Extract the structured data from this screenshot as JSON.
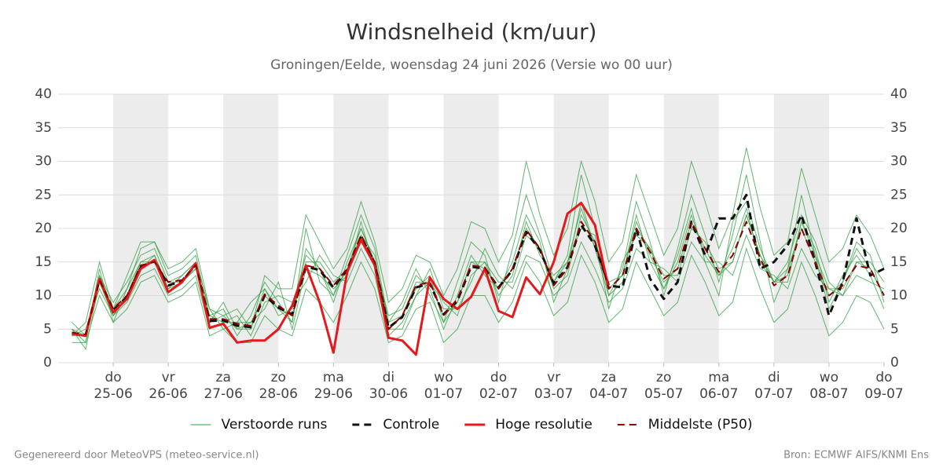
{
  "chart_data": {
    "type": "line",
    "title": "Windsnelheid (km/uur)",
    "subtitle": "Groningen/Eelde, woensdag 24 juni 2026 (Versie wo 00 uur)",
    "x": [
      0.25,
      0.5,
      0.75,
      1,
      1.25,
      1.5,
      1.75,
      2,
      2.25,
      2.5,
      2.75,
      3,
      3.25,
      3.5,
      3.75,
      4,
      4.25,
      4.5,
      4.75,
      5,
      5.25,
      5.5,
      5.75,
      6,
      6.25,
      6.5,
      6.75,
      7,
      7.25,
      7.5,
      7.75,
      8,
      8.25,
      8.5,
      8.75,
      9,
      9.25,
      9.5,
      9.75,
      10,
      10.25,
      10.5,
      10.75,
      11,
      11.25,
      11.5,
      11.75,
      12,
      12.25,
      12.5,
      12.75,
      13,
      13.25,
      13.5,
      13.75,
      14,
      14.25,
      14.5,
      14.75,
      15
    ],
    "xlim": [
      0,
      15
    ],
    "xticks": [
      {
        "value": 1,
        "label": "do\n25-06"
      },
      {
        "value": 2,
        "label": "vr\n26-06"
      },
      {
        "value": 3,
        "label": "za\n27-06"
      },
      {
        "value": 4,
        "label": "zo\n28-06"
      },
      {
        "value": 5,
        "label": "ma\n29-06"
      },
      {
        "value": 6,
        "label": "di\n30-06"
      },
      {
        "value": 7,
        "label": "wo\n01-07"
      },
      {
        "value": 8,
        "label": "do\n02-07"
      },
      {
        "value": 9,
        "label": "vr\n03-07"
      },
      {
        "value": 10,
        "label": "za\n04-07"
      },
      {
        "value": 11,
        "label": "zo\n05-07"
      },
      {
        "value": 12,
        "label": "ma\n06-07"
      },
      {
        "value": 13,
        "label": "di\n07-07"
      },
      {
        "value": 14,
        "label": "wo\n08-07"
      },
      {
        "value": 15,
        "label": "do\n09-07"
      }
    ],
    "ylim": [
      0,
      40
    ],
    "yticks": [
      0,
      5,
      10,
      15,
      20,
      25,
      30,
      35,
      40
    ],
    "grid": true,
    "ensemble": {
      "name": "Verstoorde runs",
      "color": "#2e9e3e",
      "members": [
        [
          5,
          3,
          14,
          6,
          11,
          17,
          18,
          13,
          14,
          16,
          7,
          8,
          4,
          7,
          12,
          9,
          6,
          20,
          12,
          10,
          16,
          22,
          17,
          6,
          9,
          14,
          10,
          6,
          12,
          18,
          16,
          9,
          17,
          25,
          19,
          12,
          16,
          28,
          20,
          10,
          14,
          24,
          18,
          10,
          17,
          25,
          19,
          12,
          19,
          28,
          18,
          9,
          14,
          25,
          16,
          8,
          12,
          18,
          16,
          9
        ],
        [
          4,
          5,
          11,
          7,
          9,
          13,
          14,
          10,
          11,
          13,
          5,
          6,
          7,
          4,
          9,
          10,
          9,
          12,
          16,
          13,
          12,
          17,
          13,
          4,
          6,
          10,
          14,
          8,
          8,
          12,
          17,
          13,
          11,
          16,
          15,
          10,
          12,
          18,
          14,
          9,
          11,
          17,
          15,
          14,
          12,
          18,
          15,
          15,
          13,
          19,
          14,
          13,
          11,
          17,
          13,
          11,
          10,
          13,
          12,
          11
        ],
        [
          6,
          4,
          13,
          9,
          12,
          16,
          17,
          12,
          13,
          15,
          8,
          5,
          6,
          9,
          11,
          7,
          8,
          16,
          14,
          9,
          15,
          20,
          15,
          7,
          8,
          13,
          11,
          5,
          10,
          16,
          13,
          11,
          15,
          22,
          18,
          9,
          14,
          24,
          17,
          12,
          13,
          22,
          15,
          11,
          16,
          23,
          15,
          10,
          21,
          24,
          17,
          12,
          15,
          22,
          18,
          12,
          10,
          15,
          15,
          12
        ],
        [
          5,
          2,
          12,
          7,
          10,
          15,
          16,
          11,
          12,
          14,
          6,
          9,
          5,
          6,
          8,
          12,
          5,
          14,
          13,
          11,
          13,
          21,
          14,
          5,
          5,
          10,
          12,
          9,
          7,
          13,
          15,
          10,
          13,
          21,
          16,
          13,
          15,
          20,
          19,
          8,
          15,
          19,
          17,
          13,
          13,
          20,
          18,
          14,
          15,
          22,
          16,
          12,
          12,
          21,
          17,
          9,
          13,
          16,
          13,
          8
        ],
        [
          4,
          6,
          15,
          8,
          13,
          18,
          18,
          14,
          15,
          17,
          8,
          7,
          8,
          5,
          13,
          11,
          11,
          22,
          18,
          14,
          17,
          24,
          18,
          9,
          11,
          16,
          15,
          10,
          14,
          21,
          20,
          15,
          19,
          30,
          22,
          16,
          20,
          30,
          24,
          15,
          18,
          28,
          22,
          16,
          20,
          30,
          24,
          17,
          22,
          32,
          23,
          16,
          18,
          29,
          22,
          15,
          17,
          22,
          19,
          14
        ],
        [
          3,
          3,
          10,
          6,
          8,
          12,
          13,
          9,
          10,
          12,
          4,
          5,
          3,
          3,
          7,
          5,
          4,
          11,
          9,
          6,
          10,
          15,
          11,
          3,
          4,
          8,
          9,
          3,
          5,
          10,
          10,
          6,
          9,
          15,
          12,
          7,
          9,
          16,
          12,
          6,
          8,
          15,
          11,
          7,
          9,
          16,
          12,
          7,
          9,
          17,
          11,
          6,
          8,
          15,
          10,
          4,
          6,
          10,
          9,
          5
        ],
        [
          5,
          4,
          13,
          8,
          11,
          15,
          15,
          12,
          12,
          14,
          7,
          6,
          6,
          6,
          10,
          8,
          7,
          15,
          15,
          12,
          14,
          20,
          15,
          6,
          7,
          12,
          12,
          7,
          9,
          15,
          14,
          11,
          14,
          20,
          17,
          11,
          13,
          22,
          18,
          11,
          13,
          21,
          16,
          12,
          14,
          21,
          17,
          13,
          15,
          22,
          16,
          12,
          13,
          21,
          16,
          11,
          11,
          15,
          14,
          10
        ],
        [
          4,
          4,
          12,
          7,
          10,
          14,
          16,
          11,
          13,
          15,
          6,
          7,
          5,
          5,
          11,
          8,
          6,
          17,
          14,
          10,
          14,
          19,
          16,
          5,
          7,
          11,
          13,
          6,
          9,
          15,
          15,
          12,
          12,
          19,
          17,
          12,
          15,
          23,
          17,
          10,
          12,
          20,
          17,
          11,
          15,
          22,
          16,
          13,
          17,
          23,
          15,
          12,
          14,
          20,
          15,
          10,
          12,
          17,
          14,
          10
        ]
      ]
    },
    "series": [
      {
        "name": "Controle",
        "color": "#111111",
        "style": "dashed",
        "width": 3,
        "values": [
          4.4,
          4.1,
          12.4,
          7.8,
          9.8,
          14.2,
          15.2,
          11.5,
          12.2,
          14.6,
          6.2,
          6.3,
          5.5,
          5.3,
          10,
          8.2,
          7.2,
          14.3,
          13.8,
          11.2,
          13.8,
          18.8,
          14.8,
          5.2,
          6.8,
          11.2,
          11.8,
          7.2,
          9.2,
          14.3,
          14,
          11.2,
          13.8,
          19.5,
          16.8,
          11.8,
          14.2,
          20.5,
          17.5,
          11.5,
          11.2,
          20,
          12.5,
          9.5,
          12,
          21,
          16,
          21.5,
          21.5,
          25,
          14,
          15,
          17.5,
          22,
          15,
          7,
          12,
          21.5,
          13,
          14
        ]
      },
      {
        "name": "Hoge resolutie",
        "color": "#e3191c",
        "style": "solid",
        "width": 3,
        "values": [
          4.3,
          4,
          12.5,
          7.5,
          9.5,
          14,
          15.3,
          10.5,
          12,
          14.8,
          5.2,
          5.8,
          3,
          3.3,
          3.3,
          5,
          8.5,
          14.5,
          9,
          1.5,
          13.5,
          18.3,
          14.5,
          3.7,
          3.3,
          1.2,
          12.7,
          9.5,
          8,
          9.8,
          14,
          7.7,
          6.8,
          12.7,
          10.2,
          15,
          22.2,
          23.8,
          20.5,
          11,
          null,
          null,
          null,
          null,
          null,
          null,
          null,
          null,
          null,
          null,
          null,
          null,
          null,
          null,
          null,
          null,
          null,
          null,
          null,
          null
        ]
      },
      {
        "name": "Middelste (P50)",
        "color": "#8b0000",
        "style": "dashed",
        "width": 2,
        "values": [
          4.5,
          4.2,
          12.3,
          8,
          10,
          14.5,
          15,
          12,
          12.3,
          14.5,
          6.5,
          6.5,
          5.8,
          5.5,
          10.2,
          8.5,
          7,
          14.5,
          14,
          11.5,
          14,
          19,
          15,
          5,
          7,
          11.5,
          12,
          7,
          9.5,
          14.5,
          14.2,
          11,
          14,
          19.8,
          17,
          11.5,
          14,
          21,
          18,
          11,
          13,
          20,
          16.5,
          12.5,
          14,
          21,
          17,
          13.5,
          16,
          21,
          15.5,
          11.5,
          13,
          20,
          15,
          10,
          11.5,
          14.5,
          14,
          10
        ]
      }
    ]
  },
  "footer": {
    "left": "Gegenereerd door MeteoVPS (meteo-service.nl)",
    "right": "Bron: ECMWF AIFS/KNMI Ens"
  }
}
